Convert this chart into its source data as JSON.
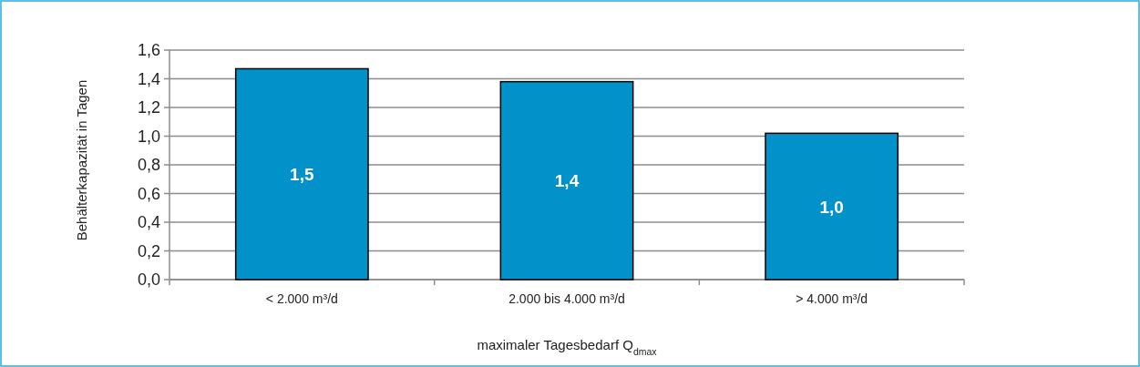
{
  "chart_data": {
    "type": "bar",
    "xlabel": "maximaler Tagesbedarf Q$_{dmax}$",
    "ylabel": "Behälterkapazität in Tagen",
    "categories": [
      "< 2.000 m³/d",
      "2.000 bis 4.000 m³/d",
      "> 4.000 m³/d"
    ],
    "values": [
      1.47,
      1.38,
      1.02
    ],
    "color": "#0391c9",
    "value_labels": [
      "1,5",
      "1,4",
      "1,0"
    ],
    "ylim": [
      0,
      1.6
    ],
    "yticks": [
      {
        "value": 0,
        "label": "0,0"
      },
      {
        "value": 0.2,
        "label": "0,2"
      },
      {
        "value": 0.4,
        "label": "0,4"
      },
      {
        "value": 0.6,
        "label": "0,6"
      },
      {
        "value": 0.8,
        "label": "0,8"
      },
      {
        "value": 1.0,
        "label": "1,0"
      },
      {
        "value": 1.2,
        "label": "1,2"
      },
      {
        "value": 1.4,
        "label": "1,4"
      },
      {
        "value": 1.6,
        "label": "1,6"
      }
    ],
    "grid": "y"
  }
}
